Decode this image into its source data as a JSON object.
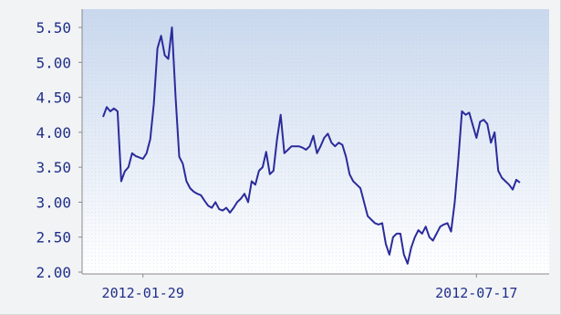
{
  "chart_data": {
    "type": "line",
    "title": "",
    "xlabel": "",
    "ylabel": "",
    "ylim": [
      2.0,
      5.5
    ],
    "y_ticks": [
      "5.50",
      "5.00",
      "4.50",
      "4.00",
      "3.50",
      "3.00",
      "2.50",
      "2.00"
    ],
    "x_ticks": [
      "2012-01-29",
      "2012-07-17"
    ],
    "grid": true,
    "legend": "none",
    "colors": {
      "line": "#2b2b9b",
      "axis": "#8a8a8a",
      "text": "#1f2f8a",
      "bg_top": "#c9d8ee",
      "bg_bottom": "#ffffff"
    },
    "series": [
      {
        "values": [
          4.22,
          4.36,
          4.3,
          4.34,
          4.3,
          3.3,
          3.44,
          3.5,
          3.7,
          3.66,
          3.64,
          3.62,
          3.7,
          3.9,
          4.4,
          5.2,
          5.38,
          5.1,
          5.05,
          5.5,
          4.5,
          3.65,
          3.55,
          3.3,
          3.2,
          3.15,
          3.12,
          3.1,
          3.02,
          2.95,
          2.92,
          3.0,
          2.9,
          2.88,
          2.92,
          2.85,
          2.92,
          3.0,
          3.05,
          3.12,
          3.0,
          3.3,
          3.25,
          3.45,
          3.5,
          3.72,
          3.4,
          3.45,
          3.9,
          4.25,
          3.7,
          3.75,
          3.8,
          3.8,
          3.8,
          3.78,
          3.75,
          3.8,
          3.95,
          3.7,
          3.8,
          3.92,
          3.98,
          3.85,
          3.8,
          3.85,
          3.82,
          3.65,
          3.4,
          3.3,
          3.25,
          3.2,
          3.0,
          2.8,
          2.75,
          2.7,
          2.68,
          2.7,
          2.4,
          2.25,
          2.5,
          2.55,
          2.55,
          2.25,
          2.12,
          2.35,
          2.5,
          2.6,
          2.55,
          2.65,
          2.5,
          2.45,
          2.55,
          2.65,
          2.68,
          2.7,
          2.58,
          3.0,
          3.6,
          4.3,
          4.25,
          4.28,
          4.1,
          3.92,
          4.15,
          4.18,
          4.12,
          3.85,
          4.0,
          3.45,
          3.35,
          3.3,
          3.25,
          3.18,
          3.32,
          3.28
        ]
      }
    ]
  }
}
